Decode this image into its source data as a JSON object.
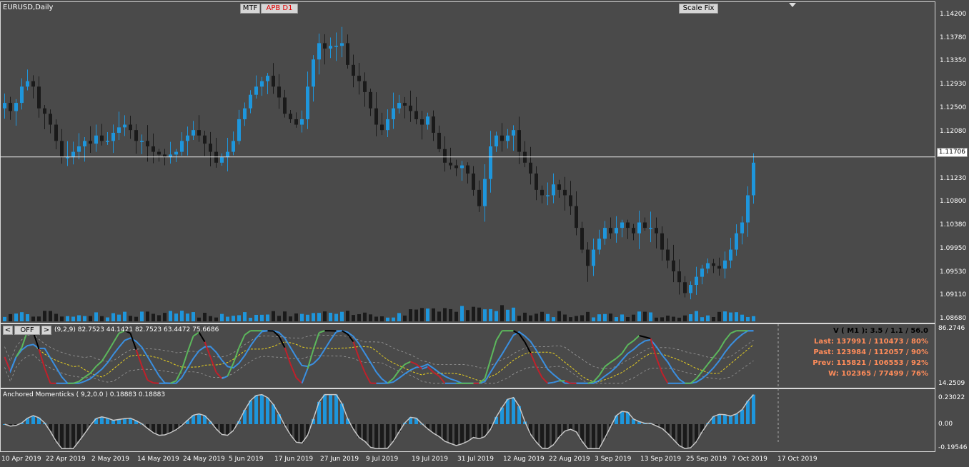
{
  "chart": {
    "symbol_title": "EURUSD,Daily",
    "mtf_button": "MTF",
    "apb_button": "APB D1",
    "scale_fix_button": "Scale Fix",
    "current_price": "1.11706",
    "price_axis": [
      "1.14200",
      "1.13780",
      "1.13350",
      "1.12930",
      "1.12500",
      "1.12080",
      "1.11230",
      "1.10800",
      "1.10380",
      "1.09950",
      "1.09530",
      "1.09110",
      "1.08680"
    ]
  },
  "oscillator": {
    "prev_button": "<",
    "off_button": "OFF",
    "next_button": ">",
    "params_text": "(9,2,9) 82.7523 44.1421 82.7523 63.4472 75.6686",
    "axis_top": "86.2746",
    "axis_bottom": "14.2509",
    "stats": {
      "v_line": "V ( M1 ): 3.5 / 1.1 / 56.0",
      "last_line": "Last: 137991 / 110473 / 80%",
      "past_line": "Past: 123984 / 112057 / 90%",
      "prev_line": "Prev: 115821 / 106553 / 92%",
      "w_line": "W: 102365 / 77499 / 76%"
    }
  },
  "momenticks": {
    "title": "Anchored Momenticks ( 9,2,0.0 ) 0.18883 0.18883",
    "axis_top": "0.23022",
    "axis_mid": "0.00",
    "axis_bottom": "-0.19546"
  },
  "time_axis": [
    "10 Apr 2019",
    "22 Apr 2019",
    "2 May 2019",
    "14 May 2019",
    "24 May 2019",
    "5 Jun 2019",
    "17 Jun 2019",
    "27 Jun 2019",
    "9 Jul 2019",
    "19 Jul 2019",
    "31 Jul 2019",
    "12 Aug 2019",
    "22 Aug 2019",
    "3 Sep 2019",
    "13 Sep 2019",
    "25 Sep 2019",
    "7 Oct 2019",
    "17 Oct 2019"
  ],
  "colors": {
    "background": "#4a4a4a",
    "bull_candle": "#1e96dc",
    "bear_candle": "#1a1a1a",
    "stats_orange": "#ff8c5a",
    "line_green": "#5cb85c",
    "line_blue": "#3a8fe0",
    "line_red": "#c0202a",
    "line_black": "#000000",
    "line_yellow": "#e8d020"
  },
  "chart_data": {
    "type": "candlestick",
    "symbol": "EURUSD",
    "timeframe": "Daily",
    "first_date": "10 Apr 2019",
    "last_date": "17 Oct 2019",
    "ylim": [
      1.0868,
      1.1441
    ],
    "last_price": 1.11706,
    "closes": [
      1.127,
      1.1255,
      1.127,
      1.13,
      1.131,
      1.13,
      1.126,
      1.125,
      1.123,
      1.12,
      1.117,
      1.117,
      1.118,
      1.119,
      1.12,
      1.1195,
      1.121,
      1.12,
      1.12,
      1.1215,
      1.1225,
      1.123,
      1.122,
      1.12,
      1.12,
      1.119,
      1.118,
      1.1175,
      1.117,
      1.1175,
      1.118,
      1.12,
      1.121,
      1.122,
      1.121,
      1.1195,
      1.118,
      1.116,
      1.117,
      1.118,
      1.12,
      1.124,
      1.126,
      1.1285,
      1.13,
      1.131,
      1.132,
      1.13,
      1.128,
      1.125,
      1.124,
      1.123,
      1.124,
      1.13,
      1.135,
      1.138,
      1.137,
      1.1375,
      1.1375,
      1.138,
      1.134,
      1.132,
      1.131,
      1.129,
      1.126,
      1.123,
      1.122,
      1.124,
      1.126,
      1.127,
      1.1265,
      1.1255,
      1.124,
      1.123,
      1.1245,
      1.1215,
      1.1185,
      1.116,
      1.1155,
      1.115,
      1.1155,
      1.114,
      1.111,
      1.108,
      1.113,
      1.119,
      1.121,
      1.12,
      1.121,
      1.122,
      1.118,
      1.116,
      1.114,
      1.111,
      1.11,
      1.11,
      1.112,
      1.111,
      1.11,
      1.108,
      1.104,
      1.1,
      1.097,
      1.1,
      1.102,
      1.104,
      1.103,
      1.104,
      1.105,
      1.104,
      1.103,
      1.105,
      1.104,
      1.104,
      1.103,
      1.1,
      1.098,
      1.096,
      1.094,
      1.092,
      1.0935,
      1.095,
      1.0965,
      1.0975,
      1.097,
      1.0965,
      1.098,
      1.1,
      1.103,
      1.105,
      1.11,
      1.116
    ]
  }
}
